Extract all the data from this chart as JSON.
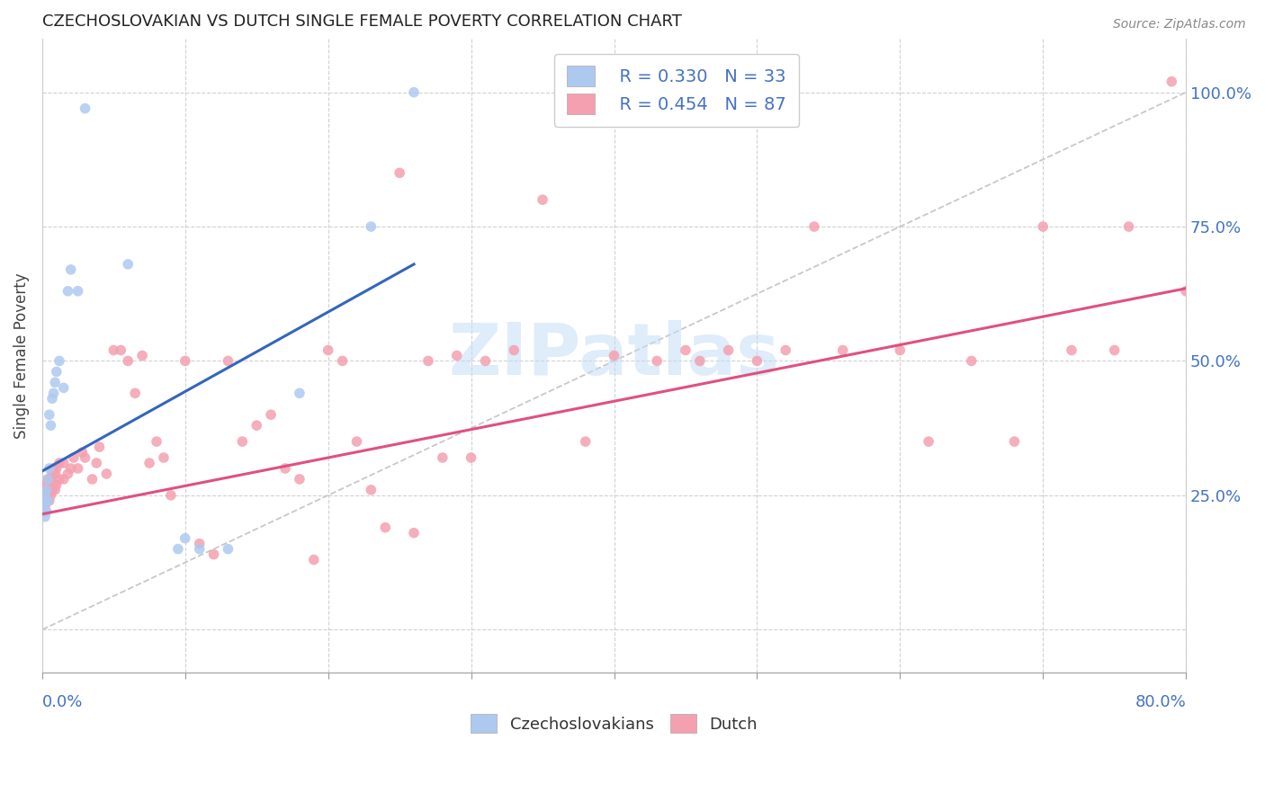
{
  "title": "CZECHOSLOVAKIAN VS DUTCH SINGLE FEMALE POVERTY CORRELATION CHART",
  "source": "Source: ZipAtlas.com",
  "ylabel": "Single Female Poverty",
  "legend_blue_R": "R = 0.330",
  "legend_blue_N": "N = 33",
  "legend_pink_R": "R = 0.454",
  "legend_pink_N": "N = 87",
  "legend_label_blue": "Czechoslovakians",
  "legend_label_pink": "Dutch",
  "blue_color": "#aec9f0",
  "pink_color": "#f4a0b0",
  "blue_line_color": "#3465c0",
  "pink_line_color": "#e05080",
  "axis_label_color": "#4472c4",
  "title_color": "#222222",
  "grid_color": "#cccccc",
  "background_color": "#ffffff",
  "watermark_text": "ZIPatlas",
  "blue_scatter_x": [
    0.001,
    0.001,
    0.001,
    0.002,
    0.002,
    0.002,
    0.002,
    0.003,
    0.003,
    0.003,
    0.004,
    0.004,
    0.005,
    0.005,
    0.006,
    0.007,
    0.008,
    0.009,
    0.01,
    0.012,
    0.015,
    0.018,
    0.02,
    0.025,
    0.03,
    0.06,
    0.095,
    0.1,
    0.11,
    0.13,
    0.18,
    0.23,
    0.26
  ],
  "blue_scatter_y": [
    0.22,
    0.23,
    0.24,
    0.21,
    0.22,
    0.24,
    0.25,
    0.22,
    0.24,
    0.26,
    0.24,
    0.28,
    0.3,
    0.4,
    0.38,
    0.43,
    0.44,
    0.46,
    0.48,
    0.5,
    0.45,
    0.63,
    0.67,
    0.63,
    0.97,
    0.68,
    0.15,
    0.17,
    0.15,
    0.15,
    0.44,
    0.75,
    1.0
  ],
  "pink_scatter_x": [
    0.001,
    0.001,
    0.002,
    0.002,
    0.003,
    0.003,
    0.004,
    0.004,
    0.005,
    0.005,
    0.006,
    0.006,
    0.007,
    0.007,
    0.008,
    0.008,
    0.009,
    0.009,
    0.01,
    0.01,
    0.012,
    0.012,
    0.015,
    0.015,
    0.018,
    0.02,
    0.022,
    0.025,
    0.028,
    0.03,
    0.035,
    0.038,
    0.04,
    0.045,
    0.05,
    0.055,
    0.06,
    0.065,
    0.07,
    0.075,
    0.08,
    0.085,
    0.09,
    0.1,
    0.11,
    0.12,
    0.13,
    0.14,
    0.15,
    0.16,
    0.17,
    0.18,
    0.19,
    0.2,
    0.21,
    0.22,
    0.23,
    0.24,
    0.25,
    0.26,
    0.27,
    0.28,
    0.29,
    0.3,
    0.31,
    0.33,
    0.35,
    0.38,
    0.4,
    0.43,
    0.45,
    0.46,
    0.48,
    0.5,
    0.52,
    0.54,
    0.56,
    0.6,
    0.62,
    0.65,
    0.68,
    0.7,
    0.72,
    0.75,
    0.76,
    0.79,
    0.8
  ],
  "pink_scatter_y": [
    0.22,
    0.25,
    0.23,
    0.26,
    0.24,
    0.27,
    0.25,
    0.28,
    0.24,
    0.27,
    0.25,
    0.28,
    0.26,
    0.29,
    0.27,
    0.3,
    0.26,
    0.29,
    0.27,
    0.3,
    0.28,
    0.31,
    0.28,
    0.31,
    0.29,
    0.3,
    0.32,
    0.3,
    0.33,
    0.32,
    0.28,
    0.31,
    0.34,
    0.29,
    0.52,
    0.52,
    0.5,
    0.44,
    0.51,
    0.31,
    0.35,
    0.32,
    0.25,
    0.5,
    0.16,
    0.14,
    0.5,
    0.35,
    0.38,
    0.4,
    0.3,
    0.28,
    0.13,
    0.52,
    0.5,
    0.35,
    0.26,
    0.19,
    0.85,
    0.18,
    0.5,
    0.32,
    0.51,
    0.32,
    0.5,
    0.52,
    0.8,
    0.35,
    0.51,
    0.5,
    0.52,
    0.5,
    0.52,
    0.5,
    0.52,
    0.75,
    0.52,
    0.52,
    0.35,
    0.5,
    0.35,
    0.75,
    0.52,
    0.52,
    0.75,
    1.02,
    0.63
  ],
  "blue_line_x": [
    0.0,
    0.26
  ],
  "blue_line_y": [
    0.295,
    0.68
  ],
  "pink_line_x": [
    0.0,
    0.8
  ],
  "pink_line_y": [
    0.215,
    0.635
  ],
  "diag_line_x": [
    0.0,
    0.8
  ],
  "diag_line_y": [
    0.0,
    1.0
  ],
  "xlim": [
    0.0,
    0.8
  ],
  "ylim": [
    -0.08,
    1.1
  ],
  "y_ticks": [
    0.0,
    0.25,
    0.5,
    0.75,
    1.0
  ],
  "y_tick_labels": [
    "",
    "25.0%",
    "50.0%",
    "75.0%",
    "100.0%"
  ]
}
